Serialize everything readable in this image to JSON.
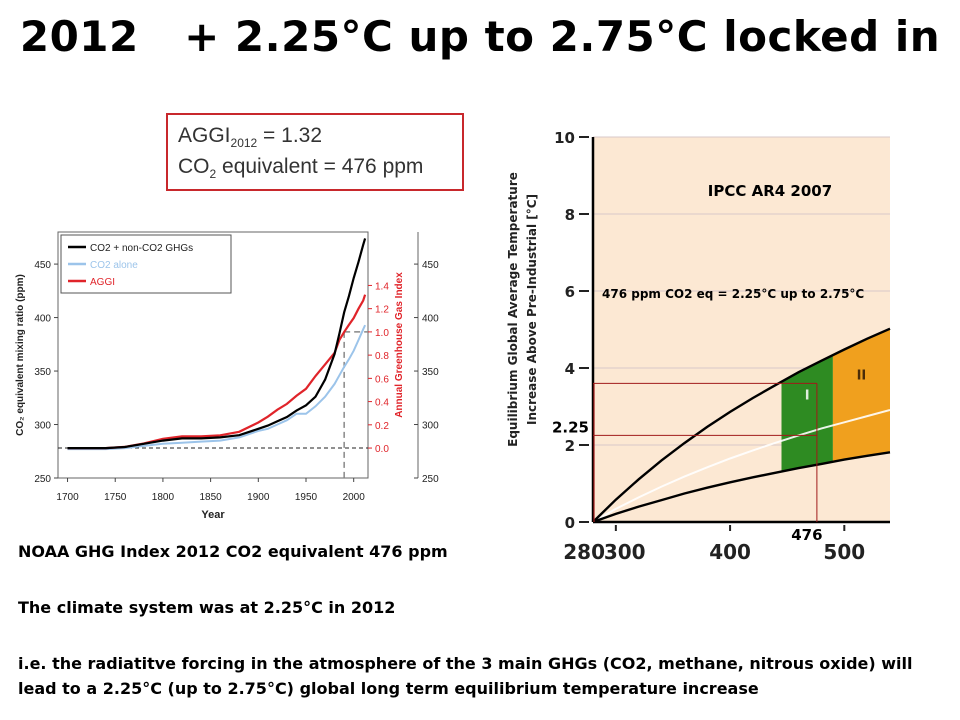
{
  "slide": {
    "title": "2012   + 2.25°C up to 2.75°C locked in",
    "aggi_box": {
      "line1_prefix": "AGGI",
      "line1_sub": "2012",
      "line1_suffix": " = 1.32",
      "line2_prefix": "CO",
      "line2_sub": "2",
      "line2_suffix": " equivalent = 476 ppm"
    },
    "paragraphs": [
      "NOAA GHG Index 2012 CO2 equivalent 476 ppm",
      "The climate system was at 2.25°C  in 2012",
      "i.e. the radiatitve forcing in the atmosphere of the 3 main GHGs (CO2, methane, nitrous oxide) will lead to a 2.25°C (up to 2.75°C) global long term equilibrium temperature increase"
    ]
  },
  "chart_data": [
    {
      "type": "line",
      "xlabel": "Year",
      "ylabel": "CO₂ equivalent mixing ratio (ppm)",
      "y2label": "Annual Greenhouse Gas Index",
      "xlim": [
        1690,
        2015
      ],
      "ylim": [
        250,
        480
      ],
      "xticks": [
        1700,
        1750,
        1800,
        1850,
        1900,
        1950,
        2000
      ],
      "yticks": [
        250,
        300,
        350,
        400,
        450
      ],
      "y2ticks": [
        "0.0",
        "0.2",
        "0.4",
        "0.6",
        "0.8",
        "1.0",
        "1.2",
        "1.4"
      ],
      "y2_values": [
        0.0,
        0.2,
        0.4,
        0.6,
        0.8,
        1.0,
        1.2,
        1.4
      ],
      "y2_ppm_per_unit": 108.6,
      "y2_zero_ppm": 278,
      "right_ppm_ticks": [
        250,
        300,
        350,
        400,
        450
      ],
      "reference_line_ppm": 278,
      "reference_year": 1990,
      "reference_aggi": 1.0,
      "legend_position": "top-left",
      "colors": {
        "total": "#000000",
        "co2": "#9cc4ea",
        "aggi": "#e0242a",
        "right_axis": "#e0242a"
      },
      "series": [
        {
          "name": "CO2 + non-CO2 GHGs",
          "key": "total",
          "x": [
            1700,
            1720,
            1740,
            1760,
            1780,
            1800,
            1820,
            1840,
            1860,
            1880,
            1900,
            1910,
            1920,
            1930,
            1940,
            1950,
            1960,
            1970,
            1980,
            1985,
            1990,
            1995,
            2000,
            2005,
            2010,
            2012
          ],
          "values": [
            278,
            278,
            278,
            279,
            282,
            285,
            287,
            287,
            288,
            290,
            296,
            299,
            303,
            307,
            313,
            318,
            326,
            342,
            366,
            385,
            405,
            420,
            437,
            452,
            468,
            474
          ]
        },
        {
          "name": "CO2 alone",
          "key": "co2",
          "x": [
            1700,
            1720,
            1740,
            1760,
            1780,
            1800,
            1820,
            1840,
            1860,
            1880,
            1900,
            1910,
            1920,
            1930,
            1940,
            1950,
            1960,
            1970,
            1980,
            1985,
            1990,
            1995,
            2000,
            2005,
            2010,
            2012
          ],
          "values": [
            277,
            277,
            277,
            278,
            280,
            282,
            283,
            284,
            285,
            288,
            294,
            296,
            300,
            304,
            310,
            310,
            317,
            326,
            338,
            346,
            354,
            361,
            369,
            379,
            389,
            393
          ]
        },
        {
          "name": "AGGI",
          "key": "aggi",
          "x": [
            1700,
            1720,
            1740,
            1760,
            1780,
            1800,
            1820,
            1840,
            1860,
            1880,
            1900,
            1910,
            1920,
            1930,
            1940,
            1950,
            1960,
            1970,
            1980,
            1985,
            1990,
            1995,
            2000,
            2005,
            2010,
            2012
          ],
          "values": [
            0.0,
            0.0,
            0.0,
            0.01,
            0.04,
            0.08,
            0.1,
            0.1,
            0.11,
            0.14,
            0.22,
            0.27,
            0.33,
            0.38,
            0.45,
            0.51,
            0.62,
            0.72,
            0.82,
            0.93,
            1.0,
            1.06,
            1.12,
            1.2,
            1.27,
            1.32
          ]
        }
      ]
    },
    {
      "type": "area",
      "title": "IPCC AR4 2007",
      "ylabel": "Equilibrium Global Average Temperature Increase Above Pre-Industrial [°C]",
      "xlim": [
        280,
        540
      ],
      "ylim": [
        0,
        10
      ],
      "xticks": [
        280,
        300,
        400,
        500
      ],
      "xtick_labels": [
        "280",
        "300",
        "400",
        "500"
      ],
      "yticks": [
        0,
        2,
        4,
        6,
        8,
        10
      ],
      "annotation": "476 ppm CO2 eq = 2.25°C up to 2.75°C",
      "marker_x_label": "476",
      "marker_y_label": "2.25",
      "marker_x": 476,
      "marker_y_low": 2.25,
      "marker_y_high": 3.6,
      "category_labels": [
        "I",
        "II"
      ],
      "category_ranges": [
        [
          445,
          490
        ],
        [
          490,
          540
        ]
      ],
      "colors": {
        "background": "#fce8d3",
        "upper_line": "#000000",
        "lower_line": "#000000",
        "best_line": "#ffffff",
        "cat_I": "#2e8b22",
        "cat_II": "#f0a01e",
        "marker": "#a11a1a",
        "grid": "#d8c8c8"
      },
      "upper_bound": {
        "x": [
          280,
          300,
          320,
          340,
          360,
          380,
          400,
          420,
          440,
          460,
          480,
          500,
          520,
          540
        ],
        "y": [
          0,
          0.58,
          1.11,
          1.6,
          2.05,
          2.47,
          2.86,
          3.22,
          3.56,
          3.89,
          4.19,
          4.48,
          4.76,
          5.02
        ]
      },
      "best_estimate": {
        "x": [
          280,
          300,
          320,
          340,
          360,
          380,
          400,
          420,
          440,
          460,
          480,
          500,
          520,
          540
        ],
        "y": [
          0,
          0.34,
          0.64,
          0.92,
          1.18,
          1.42,
          1.65,
          1.86,
          2.06,
          2.25,
          2.43,
          2.59,
          2.75,
          2.91
        ]
      },
      "lower_bound": {
        "x": [
          280,
          300,
          320,
          340,
          360,
          380,
          400,
          420,
          440,
          460,
          480,
          500,
          520,
          540
        ],
        "y": [
          0,
          0.21,
          0.4,
          0.57,
          0.74,
          0.89,
          1.03,
          1.16,
          1.28,
          1.4,
          1.51,
          1.62,
          1.72,
          1.81
        ]
      }
    }
  ]
}
